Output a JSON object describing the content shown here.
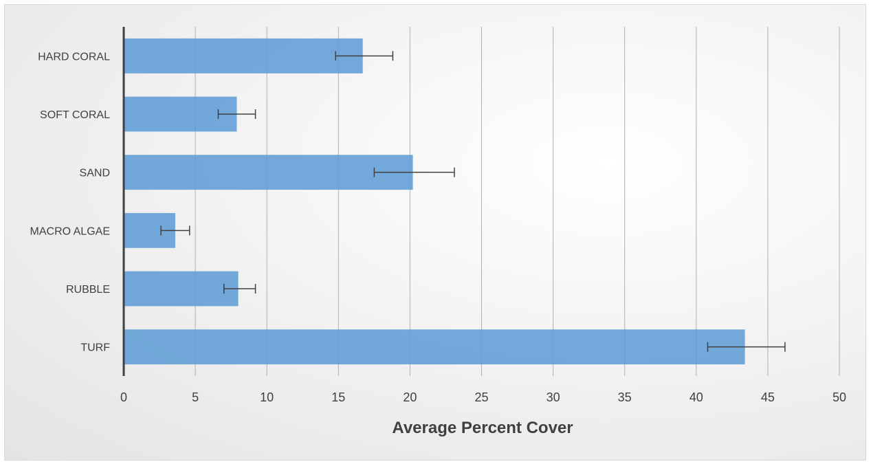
{
  "chart_data": {
    "type": "bar",
    "orientation": "horizontal",
    "title": "",
    "xlabel": "Average Percent Cover",
    "ylabel": "",
    "categories": [
      "HARD CORAL",
      "SOFT CORAL",
      "SAND",
      "MACRO ALGAE",
      "RUBBLE",
      "TURF"
    ],
    "values": [
      16.7,
      7.9,
      20.2,
      3.6,
      8.0,
      43.4
    ],
    "error_low": [
      14.8,
      6.6,
      17.5,
      2.6,
      7.0,
      40.8
    ],
    "error_high": [
      18.8,
      9.2,
      23.1,
      4.6,
      9.2,
      46.2
    ],
    "xlim": [
      0,
      50
    ],
    "xticks": [
      "0",
      "5",
      "10",
      "15",
      "20",
      "25",
      "30",
      "35",
      "40",
      "45",
      "50"
    ],
    "grid": "vertical",
    "legend": "none",
    "colors": {
      "bar": "#5b9bd5",
      "error_bar": "#404040",
      "grid": "#b0b0b0",
      "axis": "#404040"
    }
  }
}
